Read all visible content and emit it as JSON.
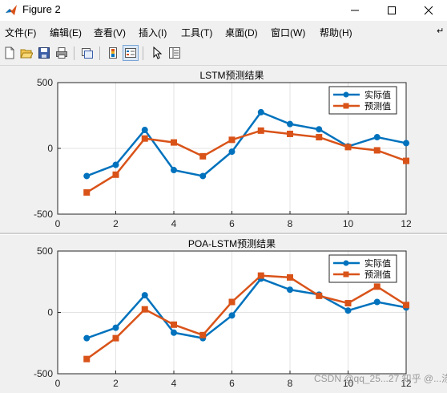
{
  "window": {
    "title": "Figure 2",
    "controls": [
      "minimize",
      "maximize",
      "close"
    ]
  },
  "menu": [
    {
      "label": "文件(F)"
    },
    {
      "label": "编辑(E)"
    },
    {
      "label": "查看(V)"
    },
    {
      "label": "插入(I)"
    },
    {
      "label": "工具(T)"
    },
    {
      "label": "桌面(D)"
    },
    {
      "label": "窗口(W)"
    },
    {
      "label": "帮助(H)"
    }
  ],
  "toolbar": {
    "tools": [
      "new-figure-icon",
      "open-file-icon",
      "save-icon",
      "print-icon",
      "link-plot-icon",
      "insert-colorbar-icon",
      "insert-legend-icon",
      "edit-plot-arrow-icon",
      "property-inspector-icon"
    ]
  },
  "colors": {
    "actual": "#0072bd",
    "predicted": "#d95319",
    "grid": "#e3e3e3",
    "axes_bg": "#ffffff"
  },
  "chart_data": [
    {
      "type": "line",
      "title": "LSTM预测结果",
      "xlabel": "",
      "ylabel": "",
      "xlim": [
        0,
        12
      ],
      "ylim": [
        -500,
        500
      ],
      "xticks": [
        0,
        2,
        4,
        6,
        8,
        10,
        12
      ],
      "yticks": [
        -500,
        0,
        500
      ],
      "grid": true,
      "legend_position": "top-right",
      "x": [
        1,
        2,
        3,
        4,
        5,
        6,
        7,
        8,
        9,
        10,
        11,
        12
      ],
      "series": [
        {
          "name": "实际值",
          "marker": "circle",
          "values": [
            -210,
            -125,
            140,
            -165,
            -210,
            -25,
            275,
            185,
            145,
            15,
            85,
            40
          ]
        },
        {
          "name": "预测值",
          "marker": "square",
          "values": [
            -335,
            -200,
            75,
            45,
            -60,
            65,
            135,
            110,
            85,
            10,
            -15,
            -95
          ]
        }
      ]
    },
    {
      "type": "line",
      "title": "POA-LSTM预测结果",
      "xlabel": "",
      "ylabel": "",
      "xlim": [
        0,
        12
      ],
      "ylim": [
        -500,
        500
      ],
      "xticks": [
        0,
        2,
        4,
        6,
        8,
        10,
        12
      ],
      "yticks": [
        -500,
        0,
        500
      ],
      "grid": true,
      "legend_position": "top-right",
      "x": [
        1,
        2,
        3,
        4,
        5,
        6,
        7,
        8,
        9,
        10,
        11,
        12
      ],
      "series": [
        {
          "name": "实际值",
          "marker": "circle",
          "values": [
            -210,
            -125,
            140,
            -165,
            -210,
            -25,
            275,
            185,
            145,
            15,
            85,
            40
          ]
        },
        {
          "name": "预测值",
          "marker": "square",
          "values": [
            -380,
            -210,
            25,
            -100,
            -185,
            85,
            300,
            285,
            135,
            75,
            210,
            60
          ]
        }
      ]
    }
  ],
  "watermark": "CSDN @qq_25...27  知乎 @...涤"
}
